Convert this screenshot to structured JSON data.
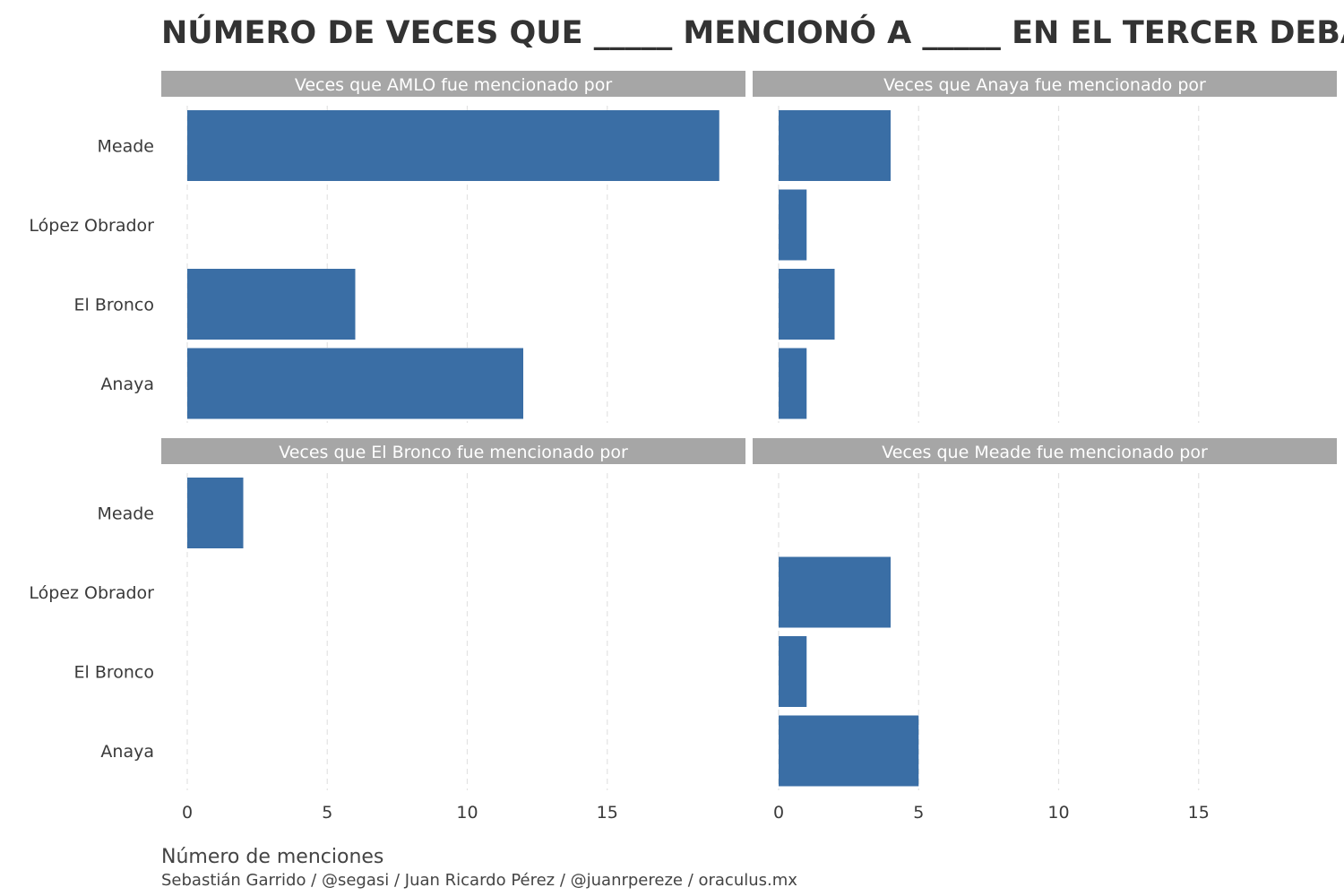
{
  "colors": {
    "bar": "#3a6ea5",
    "strip": "#a6a6a6",
    "grid": "#e3e3e3"
  },
  "chart_data": {
    "type": "bar",
    "orientation": "horizontal",
    "title": "NÚMERO DE VECES QUE _____ MENCIONÓ A _____ EN EL TERCER DEBATE",
    "xlabel": "Número de menciones",
    "caption": "Sebastián Garrido / @segasi / Juan Ricardo Pérez / @juanrpereze / oraculus.mx",
    "categories": [
      "Meade",
      "López Obrador",
      "El Bronco",
      "Anaya"
    ],
    "xlim": [
      0,
      19
    ],
    "xticks": [
      0,
      5,
      10,
      15
    ],
    "grid": true,
    "panels": [
      {
        "label": "Veces que AMLO fue mencionado por",
        "values": [
          19,
          0,
          6,
          12
        ]
      },
      {
        "label": "Veces que Anaya fue mencionado por",
        "values": [
          4,
          1,
          2,
          1
        ]
      },
      {
        "label": "Veces que El Bronco fue mencionado por",
        "values": [
          2,
          0,
          0,
          0
        ]
      },
      {
        "label": "Veces que Meade fue mencionado por",
        "values": [
          0,
          4,
          1,
          5
        ]
      }
    ]
  }
}
